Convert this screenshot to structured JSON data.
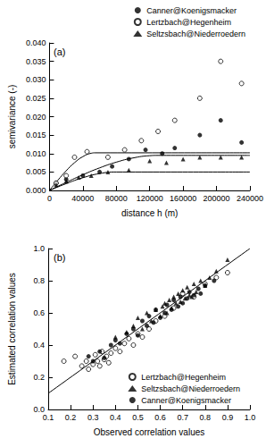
{
  "chart_data": [
    {
      "type": "scatter",
      "annotation": "(a)",
      "x_label": "distance h (m)",
      "y_label": "semivariance (-)",
      "xlim": [
        0,
        240000
      ],
      "xticks": [
        0,
        40000,
        80000,
        120000,
        160000,
        200000,
        240000
      ],
      "ylim": [
        0,
        0.04
      ],
      "yticks": [
        {
          "value": 0,
          "label": "0.000"
        },
        {
          "value": 0.005,
          "label": "0.005"
        },
        {
          "value": 0.01,
          "label": "0.010"
        },
        {
          "value": 0.015,
          "label": "0.015"
        },
        {
          "value": 0.02,
          "label": "0.020"
        },
        {
          "value": 0.025,
          "label": "0.025"
        },
        {
          "value": 0.03,
          "label": "0.030"
        },
        {
          "value": 0.035,
          "label": "0.035"
        },
        {
          "value": 0.04,
          "label": "0.040"
        }
      ],
      "grid": false,
      "legend": "upper-right",
      "series": [
        {
          "name": "Canner@Koenigsmacker",
          "type": "scatter",
          "marker": "circle",
          "color": "#000000",
          "x": [
            8000,
            20000,
            40000,
            60000,
            75000,
            95000,
            115000,
            135000,
            150000,
            180000,
            205000,
            230000
          ],
          "values": [
            0.002,
            0.003,
            0.004,
            0.005,
            0.0065,
            0.0085,
            0.011,
            0.01,
            0.0115,
            0.015,
            0.019,
            0.013
          ]
        },
        {
          "name": "Lertzbach@Hegenheim",
          "type": "scatter",
          "marker": "open_circle",
          "color": "#000000",
          "x": [
            8000,
            20000,
            30000,
            45000,
            70000,
            90000,
            110000,
            130000,
            150000,
            180000,
            205000,
            230000
          ],
          "values": [
            0.002,
            0.004,
            0.009,
            0.0105,
            0.009,
            0.011,
            0.0135,
            0.016,
            0.019,
            0.025,
            0.035,
            0.029
          ]
        },
        {
          "name": "Seltzsbach@Niederroedern",
          "type": "scatter",
          "marker": "triangle",
          "color": "#000000",
          "x": [
            8000,
            20000,
            35000,
            50000,
            70000,
            95000,
            120000,
            140000,
            160000,
            180000,
            205000,
            230000
          ],
          "values": [
            0.0015,
            0.0025,
            0.0035,
            0.004,
            0.005,
            0.0055,
            0.008,
            0.0075,
            0.0085,
            0.009,
            0.009,
            0.009
          ]
        },
        {
          "type": "line",
          "line_style": "solid",
          "color": "#000000",
          "x": [
            0,
            10000,
            20000,
            30000,
            40000,
            50000,
            55000,
            240000
          ],
          "values": [
            0,
            0.00275,
            0.00532,
            0.00752,
            0.00917,
            0.01008,
            0.0102,
            0.0102
          ]
        },
        {
          "type": "line",
          "line_style": "solid",
          "color": "#000000",
          "x": [
            0,
            20000,
            40000,
            60000,
            80000,
            100000,
            120000,
            130000,
            240000
          ],
          "values": [
            0,
            0.00218,
            0.00425,
            0.00611,
            0.00766,
            0.0088,
            0.00942,
            0.0095,
            0.0095
          ]
        },
        {
          "type": "line",
          "line_style": "solid",
          "color": "#000000",
          "x": [
            0,
            20000,
            40000,
            60000,
            80000,
            240000
          ],
          "values": [
            0,
            0.00184,
            0.00344,
            0.00457,
            0.005,
            0.005
          ]
        }
      ]
    },
    {
      "type": "scatter",
      "annotation": "(b)",
      "x_label": "Observed correlation values",
      "y_label": "Estimated correlation values",
      "xlim": [
        0.1,
        1.0
      ],
      "xticks": [
        0.1,
        0.2,
        0.3,
        0.4,
        0.5,
        0.6,
        0.7,
        0.8,
        0.9,
        {
          "value": 1.0,
          "label": "1.0"
        }
      ],
      "ylim": [
        0,
        1.0
      ],
      "yticks": [
        {
          "value": 0,
          "label": "0.0"
        },
        0.2,
        0.4,
        0.6,
        0.8,
        {
          "value": 1.0,
          "label": "1.0"
        }
      ],
      "grid": false,
      "legend": "lower-right",
      "series": [
        {
          "name": "Lertzbach@Hegenheim",
          "type": "scatter",
          "marker": "open_circle",
          "color": "#000000",
          "x": [
            0.17,
            0.22,
            0.25,
            0.27,
            0.28,
            0.3,
            0.31,
            0.32,
            0.33,
            0.34,
            0.35,
            0.36,
            0.37,
            0.38,
            0.4,
            0.42,
            0.44,
            0.46,
            0.48,
            0.5,
            0.52,
            0.55,
            0.58,
            0.62,
            0.66,
            0.7,
            0.75,
            0.8,
            0.85,
            0.9
          ],
          "values": [
            0.3,
            0.33,
            0.27,
            0.3,
            0.25,
            0.28,
            0.34,
            0.3,
            0.27,
            0.36,
            0.31,
            0.33,
            0.29,
            0.35,
            0.38,
            0.36,
            0.41,
            0.44,
            0.4,
            0.47,
            0.45,
            0.5,
            0.55,
            0.58,
            0.63,
            0.72,
            0.7,
            0.78,
            0.82,
            0.85
          ]
        },
        {
          "name": "Seltzsbach@Niederroedern",
          "type": "scatter",
          "marker": "triangle",
          "color": "#000000",
          "x": [
            0.4,
            0.45,
            0.48,
            0.5,
            0.52,
            0.54,
            0.56,
            0.58,
            0.6,
            0.61,
            0.62,
            0.63,
            0.64,
            0.65,
            0.66,
            0.67,
            0.68,
            0.69,
            0.7,
            0.71,
            0.72,
            0.73,
            0.74,
            0.75,
            0.76,
            0.78,
            0.8,
            0.82,
            0.85,
            0.9
          ],
          "values": [
            0.45,
            0.48,
            0.52,
            0.57,
            0.5,
            0.6,
            0.55,
            0.62,
            0.58,
            0.64,
            0.66,
            0.6,
            0.68,
            0.63,
            0.7,
            0.66,
            0.72,
            0.67,
            0.74,
            0.69,
            0.76,
            0.71,
            0.7,
            0.78,
            0.73,
            0.8,
            0.77,
            0.82,
            0.86,
            0.93
          ]
        },
        {
          "name": "Canner@Koenigsmacker",
          "type": "scatter",
          "marker": "circle",
          "color": "#000000",
          "x": [
            0.28,
            0.3,
            0.33,
            0.35,
            0.38,
            0.4,
            0.42,
            0.45,
            0.48,
            0.5,
            0.52,
            0.54,
            0.55,
            0.57,
            0.58,
            0.6,
            0.62,
            0.63,
            0.65,
            0.66,
            0.68,
            0.69,
            0.7,
            0.72,
            0.73,
            0.75,
            0.77,
            0.78,
            0.8,
            0.84
          ],
          "values": [
            0.33,
            0.3,
            0.36,
            0.32,
            0.4,
            0.43,
            0.41,
            0.47,
            0.5,
            0.46,
            0.55,
            0.52,
            0.58,
            0.54,
            0.62,
            0.57,
            0.6,
            0.65,
            0.62,
            0.68,
            0.64,
            0.7,
            0.66,
            0.69,
            0.73,
            0.71,
            0.75,
            0.72,
            0.77,
            0.8
          ]
        },
        {
          "type": "line",
          "line_style": "solid",
          "color": "#000000",
          "x": [
            0.1,
            1.0
          ],
          "values": [
            0.1,
            1.0
          ]
        }
      ]
    }
  ]
}
